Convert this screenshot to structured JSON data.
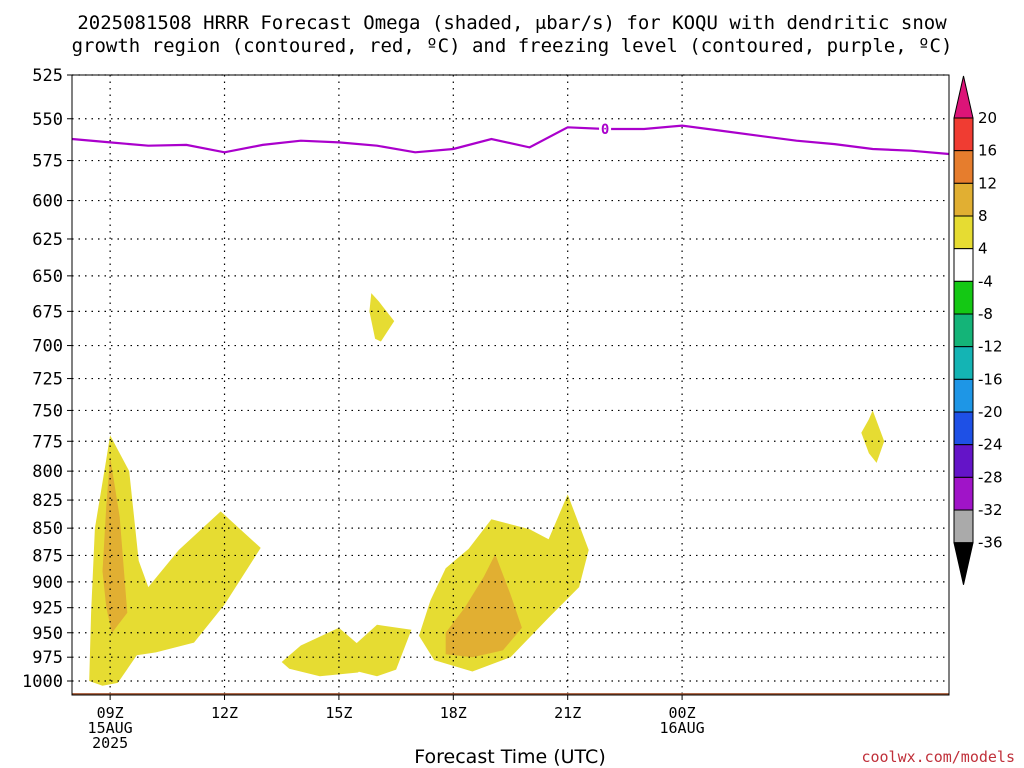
{
  "title_line1": "2025081508 HRRR Forecast Omega (shaded, μbar/s) for KOQU with dendritic snow",
  "title_line2": "growth region (contoured, red, ºC) and freezing level (contoured, purple, ºC)",
  "x_axis_title": "Forecast Time (UTC)",
  "credit": "coolwx.com/models",
  "chart_data": {
    "type": "contour",
    "x_unit": "hours from 2025-08-15 08Z",
    "y_unit": "hPa",
    "xlim": [
      0,
      23
    ],
    "ylim": [
      1015,
      525
    ],
    "y_scale": "log",
    "grid": true,
    "y_ticks": [
      525,
      550,
      575,
      600,
      625,
      650,
      675,
      700,
      725,
      750,
      775,
      800,
      825,
      850,
      875,
      900,
      925,
      950,
      975,
      1000
    ],
    "x_ticks": [
      {
        "x": 1,
        "labels": [
          "09Z",
          "15AUG",
          "2025"
        ]
      },
      {
        "x": 4,
        "labels": [
          "12Z"
        ]
      },
      {
        "x": 7,
        "labels": [
          "15Z"
        ]
      },
      {
        "x": 10,
        "labels": [
          "18Z"
        ]
      },
      {
        "x": 13,
        "labels": [
          "21Z"
        ]
      },
      {
        "x": 16,
        "labels": [
          "00Z",
          "16AUG"
        ]
      }
    ],
    "freezing_level": {
      "label": "0",
      "color": "#aa00cc",
      "x": [
        0,
        1,
        2,
        3,
        4,
        5,
        6,
        7,
        8,
        9,
        10,
        11,
        12,
        13,
        14,
        15,
        16,
        17,
        18,
        19,
        20,
        21,
        22,
        23
      ],
      "y": [
        562,
        564,
        566,
        565.5,
        570,
        565.5,
        563,
        564,
        566,
        570,
        568,
        562,
        567,
        555,
        556,
        556,
        554,
        557,
        560,
        563,
        565,
        568,
        569,
        571
      ]
    },
    "freezing_label_x": 13.98,
    "ground": {
      "color": "#a0522d",
      "pressure": 1013
    },
    "omega_regions": [
      {
        "level": "4 to 8",
        "color": "#e6dc32",
        "points": [
          [
            0.45,
            1000
          ],
          [
            0.5,
            930
          ],
          [
            0.6,
            850
          ],
          [
            0.9,
            790
          ],
          [
            1.0,
            770
          ],
          [
            1.5,
            800
          ],
          [
            1.75,
            880
          ],
          [
            2.0,
            905
          ],
          [
            2.8,
            870
          ],
          [
            3.9,
            835
          ],
          [
            4.95,
            868
          ],
          [
            4.0,
            922
          ],
          [
            3.2,
            960
          ],
          [
            2.2,
            970
          ],
          [
            1.7,
            973
          ],
          [
            1.2,
            1002
          ],
          [
            0.8,
            1005
          ]
        ]
      },
      {
        "level": "8 to 12",
        "color": "#e1af32",
        "points": [
          [
            0.8,
            890
          ],
          [
            0.9,
            830
          ],
          [
            1.0,
            788
          ],
          [
            1.25,
            840
          ],
          [
            1.45,
            930
          ],
          [
            1.05,
            950
          ],
          [
            0.9,
            925
          ]
        ]
      },
      {
        "level": "4 to 8",
        "color": "#e6dc32",
        "points": [
          [
            5.5,
            980
          ],
          [
            6.0,
            963
          ],
          [
            7.0,
            945
          ],
          [
            7.9,
            975
          ],
          [
            7.5,
            991
          ],
          [
            6.5,
            995
          ],
          [
            5.7,
            987
          ]
        ]
      },
      {
        "level": "4 to 8",
        "color": "#e6dc32",
        "points": [
          [
            7.0,
            977
          ],
          [
            8.0,
            942
          ],
          [
            8.9,
            947
          ],
          [
            8.5,
            988
          ],
          [
            8.0,
            995
          ],
          [
            7.5,
            990
          ]
        ]
      },
      {
        "level": "4 to 8",
        "color": "#e6dc32",
        "points": [
          [
            7.85,
            662
          ],
          [
            8.05,
            668
          ],
          [
            8.45,
            682
          ],
          [
            8.1,
            697
          ],
          [
            7.95,
            695
          ],
          [
            7.8,
            675
          ]
        ]
      },
      {
        "level": "4 to 8",
        "color": "#e6dc32",
        "points": [
          [
            9.1,
            953
          ],
          [
            9.4,
            918
          ],
          [
            9.8,
            887
          ],
          [
            10.4,
            869
          ],
          [
            11.0,
            842
          ],
          [
            12.0,
            851
          ],
          [
            12.5,
            860
          ],
          [
            13.0,
            820
          ],
          [
            13.55,
            870
          ],
          [
            13.3,
            905
          ],
          [
            12.5,
            935
          ],
          [
            11.5,
            975
          ],
          [
            10.5,
            990
          ],
          [
            9.5,
            978
          ]
        ]
      },
      {
        "level": "8 to 12",
        "color": "#e1af32",
        "points": [
          [
            9.8,
            950
          ],
          [
            10.3,
            925
          ],
          [
            10.8,
            895
          ],
          [
            11.1,
            874
          ],
          [
            11.5,
            912
          ],
          [
            11.8,
            945
          ],
          [
            11.3,
            968
          ],
          [
            10.5,
            975
          ],
          [
            9.8,
            972
          ]
        ]
      },
      {
        "level": "4 to 8",
        "color": "#e6dc32",
        "points": [
          [
            21.0,
            750
          ],
          [
            21.3,
            775
          ],
          [
            21.1,
            793
          ],
          [
            20.9,
            785
          ],
          [
            20.7,
            768
          ],
          [
            20.9,
            757
          ]
        ]
      }
    ],
    "colorbar": {
      "labels": [
        "20",
        "16",
        "12",
        "8",
        "4",
        "-4",
        "-8",
        "-12",
        "-16",
        "-20",
        "-24",
        "-28",
        "-32",
        "-36"
      ],
      "colors": [
        "#dc1478",
        "#f03c32",
        "#e67d2d",
        "#e1af32",
        "#e6dc32",
        "#ffffff",
        "#14c814",
        "#14b478",
        "#14b4b4",
        "#1e96e6",
        "#1e50e6",
        "#6414c8",
        "#a014c8",
        "#aaaaaa",
        "#000000"
      ]
    }
  }
}
